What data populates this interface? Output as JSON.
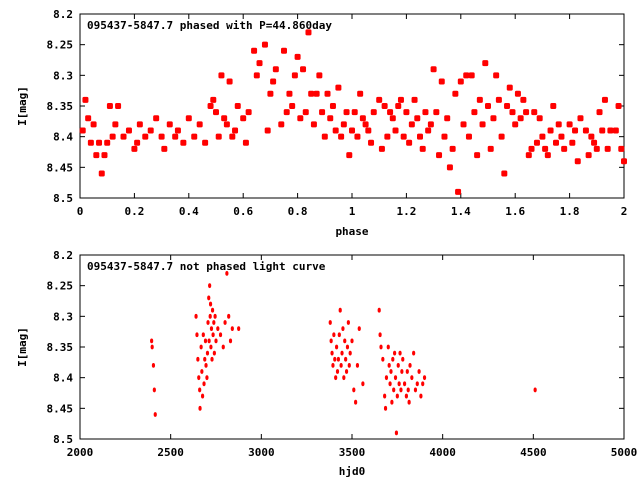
{
  "chart_data": [
    {
      "type": "scatter",
      "title": "095437-5847.7 phased with P=44.860day",
      "xlabel": "phase",
      "ylabel": "I[mag]",
      "xlim": [
        0,
        2
      ],
      "ylim": [
        8.5,
        8.2
      ],
      "xticks": [
        "0",
        "0.2",
        "0.4",
        "0.6",
        "0.8",
        "1",
        "1.2",
        "1.4",
        "1.6",
        "1.8",
        "2"
      ],
      "yticks": [
        "8.2",
        "8.25",
        "8.3",
        "8.35",
        "8.4",
        "8.45",
        "8.5"
      ],
      "grid": false,
      "points": [
        [
          0.01,
          8.39
        ],
        [
          0.02,
          8.34
        ],
        [
          0.03,
          8.37
        ],
        [
          0.04,
          8.41
        ],
        [
          0.05,
          8.38
        ],
        [
          0.06,
          8.43
        ],
        [
          0.07,
          8.41
        ],
        [
          0.08,
          8.46
        ],
        [
          0.09,
          8.43
        ],
        [
          0.1,
          8.41
        ],
        [
          0.11,
          8.35
        ],
        [
          0.12,
          8.4
        ],
        [
          0.13,
          8.38
        ],
        [
          0.14,
          8.35
        ],
        [
          0.16,
          8.4
        ],
        [
          0.18,
          8.39
        ],
        [
          0.2,
          8.42
        ],
        [
          0.21,
          8.41
        ],
        [
          0.22,
          8.38
        ],
        [
          0.24,
          8.4
        ],
        [
          0.26,
          8.39
        ],
        [
          0.28,
          8.37
        ],
        [
          0.3,
          8.4
        ],
        [
          0.31,
          8.42
        ],
        [
          0.33,
          8.38
        ],
        [
          0.35,
          8.4
        ],
        [
          0.36,
          8.39
        ],
        [
          0.38,
          8.41
        ],
        [
          0.4,
          8.37
        ],
        [
          0.42,
          8.4
        ],
        [
          0.44,
          8.38
        ],
        [
          0.46,
          8.41
        ],
        [
          0.48,
          8.35
        ],
        [
          0.49,
          8.34
        ],
        [
          0.5,
          8.36
        ],
        [
          0.51,
          8.4
        ],
        [
          0.52,
          8.3
        ],
        [
          0.53,
          8.37
        ],
        [
          0.54,
          8.38
        ],
        [
          0.55,
          8.31
        ],
        [
          0.56,
          8.4
        ],
        [
          0.57,
          8.39
        ],
        [
          0.58,
          8.35
        ],
        [
          0.6,
          8.37
        ],
        [
          0.61,
          8.41
        ],
        [
          0.62,
          8.36
        ],
        [
          0.64,
          8.26
        ],
        [
          0.65,
          8.3
        ],
        [
          0.66,
          8.28
        ],
        [
          0.68,
          8.25
        ],
        [
          0.69,
          8.39
        ],
        [
          0.7,
          8.33
        ],
        [
          0.71,
          8.31
        ],
        [
          0.72,
          8.29
        ],
        [
          0.74,
          8.38
        ],
        [
          0.75,
          8.26
        ],
        [
          0.76,
          8.36
        ],
        [
          0.77,
          8.33
        ],
        [
          0.78,
          8.35
        ],
        [
          0.79,
          8.3
        ],
        [
          0.8,
          8.27
        ],
        [
          0.81,
          8.37
        ],
        [
          0.82,
          8.29
        ],
        [
          0.83,
          8.36
        ],
        [
          0.84,
          8.23
        ],
        [
          0.85,
          8.33
        ],
        [
          0.86,
          8.38
        ],
        [
          0.87,
          8.33
        ],
        [
          0.88,
          8.3
        ],
        [
          0.89,
          8.36
        ],
        [
          0.9,
          8.4
        ],
        [
          0.91,
          8.33
        ],
        [
          0.92,
          8.37
        ],
        [
          0.93,
          8.35
        ],
        [
          0.94,
          8.39
        ],
        [
          0.95,
          8.32
        ],
        [
          0.96,
          8.4
        ],
        [
          0.97,
          8.38
        ],
        [
          0.98,
          8.36
        ],
        [
          0.99,
          8.43
        ],
        [
          1.0,
          8.39
        ],
        [
          1.01,
          8.36
        ],
        [
          1.02,
          8.4
        ],
        [
          1.03,
          8.33
        ],
        [
          1.04,
          8.37
        ],
        [
          1.05,
          8.38
        ],
        [
          1.06,
          8.39
        ],
        [
          1.07,
          8.41
        ],
        [
          1.08,
          8.36
        ],
        [
          1.1,
          8.34
        ],
        [
          1.11,
          8.42
        ],
        [
          1.12,
          8.35
        ],
        [
          1.13,
          8.4
        ],
        [
          1.14,
          8.36
        ],
        [
          1.15,
          8.37
        ],
        [
          1.16,
          8.39
        ],
        [
          1.17,
          8.35
        ],
        [
          1.18,
          8.34
        ],
        [
          1.19,
          8.4
        ],
        [
          1.2,
          8.36
        ],
        [
          1.21,
          8.41
        ],
        [
          1.22,
          8.38
        ],
        [
          1.23,
          8.34
        ],
        [
          1.24,
          8.37
        ],
        [
          1.25,
          8.4
        ],
        [
          1.26,
          8.42
        ],
        [
          1.27,
          8.36
        ],
        [
          1.28,
          8.39
        ],
        [
          1.29,
          8.38
        ],
        [
          1.3,
          8.29
        ],
        [
          1.31,
          8.36
        ],
        [
          1.32,
          8.43
        ],
        [
          1.33,
          8.31
        ],
        [
          1.34,
          8.4
        ],
        [
          1.35,
          8.37
        ],
        [
          1.36,
          8.45
        ],
        [
          1.37,
          8.42
        ],
        [
          1.38,
          8.33
        ],
        [
          1.39,
          8.49
        ],
        [
          1.4,
          8.31
        ],
        [
          1.41,
          8.38
        ],
        [
          1.42,
          8.3
        ],
        [
          1.43,
          8.4
        ],
        [
          1.44,
          8.3
        ],
        [
          1.45,
          8.36
        ],
        [
          1.46,
          8.43
        ],
        [
          1.47,
          8.34
        ],
        [
          1.48,
          8.38
        ],
        [
          1.49,
          8.28
        ],
        [
          1.5,
          8.35
        ],
        [
          1.51,
          8.42
        ],
        [
          1.52,
          8.37
        ],
        [
          1.53,
          8.3
        ],
        [
          1.54,
          8.34
        ],
        [
          1.55,
          8.4
        ],
        [
          1.56,
          8.46
        ],
        [
          1.57,
          8.35
        ],
        [
          1.58,
          8.32
        ],
        [
          1.59,
          8.36
        ],
        [
          1.6,
          8.38
        ],
        [
          1.61,
          8.33
        ],
        [
          1.62,
          8.37
        ],
        [
          1.63,
          8.34
        ],
        [
          1.64,
          8.36
        ],
        [
          1.65,
          8.43
        ],
        [
          1.66,
          8.42
        ],
        [
          1.67,
          8.36
        ],
        [
          1.68,
          8.41
        ],
        [
          1.69,
          8.37
        ],
        [
          1.7,
          8.4
        ],
        [
          1.71,
          8.42
        ],
        [
          1.72,
          8.43
        ],
        [
          1.73,
          8.39
        ],
        [
          1.74,
          8.35
        ],
        [
          1.75,
          8.41
        ],
        [
          1.76,
          8.38
        ],
        [
          1.77,
          8.4
        ],
        [
          1.78,
          8.42
        ],
        [
          1.8,
          8.38
        ],
        [
          1.81,
          8.41
        ],
        [
          1.82,
          8.39
        ],
        [
          1.83,
          8.44
        ],
        [
          1.84,
          8.37
        ],
        [
          1.86,
          8.39
        ],
        [
          1.87,
          8.43
        ],
        [
          1.88,
          8.4
        ],
        [
          1.89,
          8.41
        ],
        [
          1.9,
          8.42
        ],
        [
          1.91,
          8.36
        ],
        [
          1.92,
          8.39
        ],
        [
          1.93,
          8.34
        ],
        [
          1.94,
          8.42
        ],
        [
          1.95,
          8.39
        ],
        [
          1.97,
          8.39
        ],
        [
          1.98,
          8.35
        ],
        [
          1.99,
          8.42
        ],
        [
          2.0,
          8.44
        ]
      ]
    },
    {
      "type": "scatter",
      "title": "095437-5847.7 not phased light curve",
      "xlabel": "hjd0",
      "ylabel": "I[mag]",
      "xlim": [
        2000,
        5000
      ],
      "ylim": [
        8.5,
        8.2
      ],
      "xticks": [
        "2000",
        "2500",
        "3000",
        "3500",
        "4000",
        "4500",
        "5000"
      ],
      "yticks": [
        "8.2",
        "8.25",
        "8.3",
        "8.35",
        "8.4",
        "8.45",
        "8.5"
      ],
      "grid": false,
      "points": [
        [
          2395,
          8.34
        ],
        [
          2398,
          8.35
        ],
        [
          2405,
          8.38
        ],
        [
          2410,
          8.42
        ],
        [
          2415,
          8.46
        ],
        [
          2640,
          8.3
        ],
        [
          2645,
          8.33
        ],
        [
          2650,
          8.37
        ],
        [
          2655,
          8.4
        ],
        [
          2660,
          8.42
        ],
        [
          2662,
          8.45
        ],
        [
          2668,
          8.35
        ],
        [
          2672,
          8.39
        ],
        [
          2676,
          8.43
        ],
        [
          2680,
          8.33
        ],
        [
          2684,
          8.41
        ],
        [
          2688,
          8.37
        ],
        [
          2692,
          8.34
        ],
        [
          2695,
          8.38
        ],
        [
          2700,
          8.4
        ],
        [
          2703,
          8.36
        ],
        [
          2706,
          8.31
        ],
        [
          2710,
          8.27
        ],
        [
          2712,
          8.34
        ],
        [
          2715,
          8.25
        ],
        [
          2718,
          8.3
        ],
        [
          2720,
          8.28
        ],
        [
          2722,
          8.35
        ],
        [
          2725,
          8.32
        ],
        [
          2728,
          8.37
        ],
        [
          2731,
          8.29
        ],
        [
          2734,
          8.33
        ],
        [
          2738,
          8.31
        ],
        [
          2741,
          8.36
        ],
        [
          2745,
          8.3
        ],
        [
          2750,
          8.34
        ],
        [
          2760,
          8.32
        ],
        [
          2775,
          8.33
        ],
        [
          2790,
          8.35
        ],
        [
          2800,
          8.31
        ],
        [
          2810,
          8.23
        ],
        [
          2820,
          8.3
        ],
        [
          2830,
          8.34
        ],
        [
          2840,
          8.32
        ],
        [
          2875,
          8.32
        ],
        [
          3380,
          8.31
        ],
        [
          3385,
          8.34
        ],
        [
          3390,
          8.36
        ],
        [
          3395,
          8.38
        ],
        [
          3400,
          8.33
        ],
        [
          3405,
          8.37
        ],
        [
          3410,
          8.4
        ],
        [
          3415,
          8.35
        ],
        [
          3420,
          8.39
        ],
        [
          3425,
          8.37
        ],
        [
          3430,
          8.33
        ],
        [
          3435,
          8.29
        ],
        [
          3440,
          8.38
        ],
        [
          3445,
          8.36
        ],
        [
          3450,
          8.32
        ],
        [
          3455,
          8.4
        ],
        [
          3460,
          8.34
        ],
        [
          3465,
          8.37
        ],
        [
          3470,
          8.39
        ],
        [
          3475,
          8.35
        ],
        [
          3480,
          8.31
        ],
        [
          3485,
          8.38
        ],
        [
          3490,
          8.36
        ],
        [
          3500,
          8.34
        ],
        [
          3510,
          8.42
        ],
        [
          3520,
          8.44
        ],
        [
          3530,
          8.38
        ],
        [
          3540,
          8.32
        ],
        [
          3560,
          8.41
        ],
        [
          3650,
          8.29
        ],
        [
          3655,
          8.33
        ],
        [
          3660,
          8.35
        ],
        [
          3670,
          8.37
        ],
        [
          3680,
          8.43
        ],
        [
          3685,
          8.45
        ],
        [
          3690,
          8.4
        ],
        [
          3700,
          8.35
        ],
        [
          3705,
          8.38
        ],
        [
          3710,
          8.41
        ],
        [
          3715,
          8.39
        ],
        [
          3720,
          8.44
        ],
        [
          3725,
          8.37
        ],
        [
          3730,
          8.42
        ],
        [
          3735,
          8.36
        ],
        [
          3740,
          8.4
        ],
        [
          3745,
          8.49
        ],
        [
          3750,
          8.43
        ],
        [
          3755,
          8.38
        ],
        [
          3760,
          8.41
        ],
        [
          3765,
          8.36
        ],
        [
          3770,
          8.42
        ],
        [
          3775,
          8.39
        ],
        [
          3780,
          8.37
        ],
        [
          3790,
          8.41
        ],
        [
          3800,
          8.43
        ],
        [
          3805,
          8.39
        ],
        [
          3810,
          8.42
        ],
        [
          3815,
          8.44
        ],
        [
          3820,
          8.38
        ],
        [
          3830,
          8.4
        ],
        [
          3840,
          8.36
        ],
        [
          3850,
          8.42
        ],
        [
          3860,
          8.41
        ],
        [
          3870,
          8.39
        ],
        [
          3880,
          8.43
        ],
        [
          3890,
          8.41
        ],
        [
          3900,
          8.4
        ],
        [
          4510,
          8.42
        ]
      ]
    }
  ]
}
